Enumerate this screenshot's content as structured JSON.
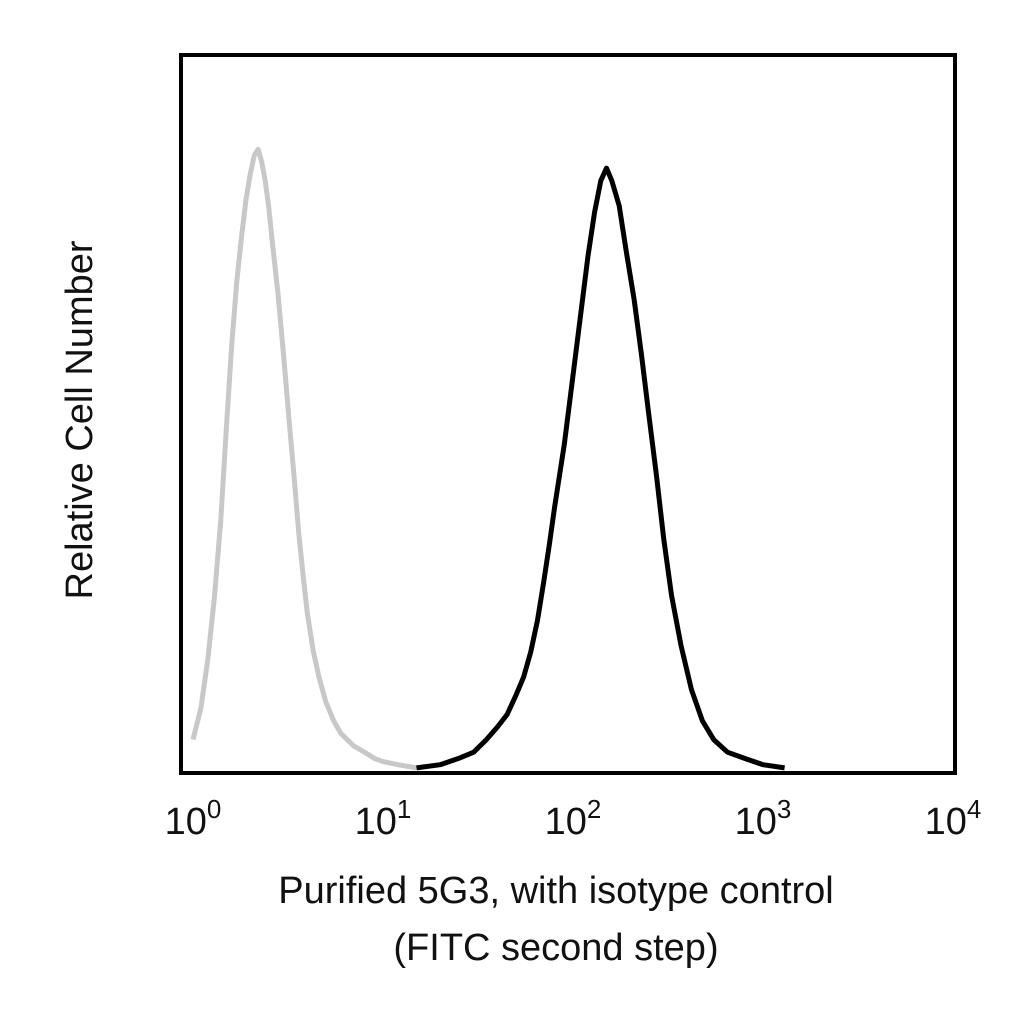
{
  "chart_data": {
    "type": "line",
    "title": "",
    "xlabel_lines": [
      "Purified 5G3, with isotype control",
      "(FITC second step)"
    ],
    "ylabel": "Relative Cell Number",
    "x_scale": "log",
    "xlim": [
      1,
      10000
    ],
    "ylim": [
      0,
      100
    ],
    "y_ticks_shown": false,
    "grid": false,
    "legend": "none",
    "x_ticks": [
      {
        "value": 1,
        "base": "10",
        "exp": "0"
      },
      {
        "value": 10,
        "base": "10",
        "exp": "1"
      },
      {
        "value": 100,
        "base": "10",
        "exp": "2"
      },
      {
        "value": 1000,
        "base": "10",
        "exp": "3"
      },
      {
        "value": 10000,
        "base": "10",
        "exp": "4"
      }
    ],
    "series": [
      {
        "color": "#c8c8c8",
        "x": [
          1.0,
          1.1,
          1.2,
          1.3,
          1.4,
          1.5,
          1.6,
          1.7,
          1.8,
          1.9,
          2.0,
          2.1,
          2.2,
          2.3,
          2.4,
          2.5,
          2.6,
          2.8,
          3.0,
          3.2,
          3.4,
          3.6,
          3.8,
          4.0,
          4.3,
          4.6,
          5.0,
          5.5,
          6.0,
          7.0,
          8.0,
          9.0,
          10.0,
          12.0,
          15.0
        ],
        "y": [
          5,
          10,
          18,
          28,
          40,
          55,
          68,
          78,
          85,
          91,
          95,
          98,
          99,
          97,
          94,
          90,
          85,
          76,
          66,
          56,
          47,
          38,
          31,
          25,
          19,
          15,
          11,
          8,
          6,
          4,
          3,
          2,
          1.5,
          1,
          0.5
        ]
      },
      {
        "color": "#000000",
        "x": [
          15,
          20,
          25,
          30,
          35,
          40,
          45,
          50,
          55,
          60,
          65,
          70,
          75,
          80,
          90,
          100,
          110,
          120,
          130,
          140,
          150,
          160,
          175,
          190,
          210,
          230,
          250,
          275,
          300,
          330,
          370,
          420,
          480,
          550,
          650,
          800,
          1000,
          1300
        ],
        "y": [
          0.5,
          1,
          2,
          3,
          5,
          7,
          9,
          12,
          15,
          19,
          24,
          30,
          36,
          42,
          52,
          63,
          73,
          82,
          89,
          94,
          96,
          94,
          90,
          83,
          75,
          66,
          57,
          47,
          37,
          28,
          20,
          13,
          8,
          5,
          3,
          2,
          1,
          0.5
        ]
      }
    ]
  }
}
